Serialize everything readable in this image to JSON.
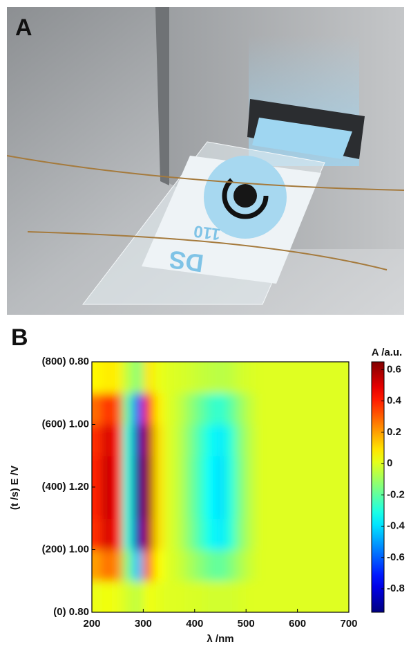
{
  "panel_labels": [
    "A",
    "B"
  ],
  "photo_text": [
    "DS",
    "110"
  ],
  "chart_data": {
    "type": "heatmap",
    "xlabel": "λ /nm",
    "ylabel": "(t /s) E /V",
    "x": [
      210,
      230,
      250,
      270,
      290,
      310,
      330,
      350,
      370,
      390,
      410,
      430,
      450,
      470,
      490,
      510,
      530,
      550,
      570,
      590,
      610,
      630,
      650,
      670,
      690
    ],
    "y": [
      50,
      150,
      250,
      350,
      450,
      550,
      650,
      750
    ],
    "z": [
      [
        0.02,
        0.03,
        0.02,
        -0.02,
        -0.05,
        0.03,
        0.01,
        0,
        0,
        -0.01,
        -0.01,
        -0.02,
        -0.02,
        -0.02,
        -0.01,
        0,
        0,
        0,
        0,
        0,
        0,
        0,
        0,
        0,
        0
      ],
      [
        0.2,
        0.28,
        0.23,
        -0.15,
        -0.45,
        0.3,
        0.05,
        0,
        -0.03,
        -0.08,
        -0.13,
        -0.18,
        -0.2,
        -0.15,
        -0.08,
        -0.03,
        0,
        0,
        0,
        0,
        0,
        0,
        0,
        0,
        0
      ],
      [
        0.38,
        0.52,
        0.43,
        -0.29,
        -0.86,
        0.57,
        0.1,
        0,
        -0.05,
        -0.14,
        -0.24,
        -0.33,
        -0.38,
        -0.29,
        -0.14,
        -0.05,
        0,
        0,
        0,
        0,
        0,
        0,
        0,
        0,
        0
      ],
      [
        0.4,
        0.55,
        0.45,
        -0.3,
        -0.9,
        0.6,
        0.1,
        0,
        -0.05,
        -0.15,
        -0.25,
        -0.35,
        -0.4,
        -0.3,
        -0.15,
        -0.05,
        0,
        0,
        0,
        0,
        0,
        0,
        0,
        0,
        0
      ],
      [
        0.4,
        0.55,
        0.45,
        -0.3,
        -0.9,
        0.6,
        0.1,
        0,
        -0.05,
        -0.15,
        -0.25,
        -0.35,
        -0.4,
        -0.3,
        -0.15,
        -0.05,
        0,
        0,
        0,
        0,
        0,
        0,
        0,
        0,
        0
      ],
      [
        0.38,
        0.52,
        0.43,
        -0.29,
        -0.86,
        0.57,
        0.1,
        0,
        -0.05,
        -0.14,
        -0.24,
        -0.33,
        -0.38,
        -0.29,
        -0.14,
        -0.05,
        0,
        0,
        0,
        0,
        0,
        0,
        0,
        0,
        0
      ],
      [
        0.28,
        0.39,
        0.32,
        -0.21,
        -0.63,
        0.42,
        0.07,
        0,
        -0.04,
        -0.11,
        -0.18,
        -0.25,
        -0.28,
        -0.21,
        -0.11,
        -0.04,
        0,
        0,
        0,
        0,
        0,
        0,
        0,
        0,
        0
      ],
      [
        0.06,
        0.08,
        0.07,
        -0.05,
        -0.14,
        0.09,
        0.02,
        0,
        -0.01,
        -0.02,
        -0.04,
        -0.05,
        -0.06,
        -0.05,
        -0.02,
        -0.01,
        0,
        0,
        0,
        0,
        0,
        0,
        0,
        0,
        0
      ]
    ],
    "xlim": [
      200,
      700
    ],
    "xticks": [
      200,
      300,
      400,
      500,
      600,
      700
    ],
    "ylim": [
      0,
      800
    ],
    "yticks": [
      {
        "value": 0,
        "label": "(0) 0.80"
      },
      {
        "value": 200,
        "label": "(200) 1.00"
      },
      {
        "value": 400,
        "label": "(400) 1.20"
      },
      {
        "value": 600,
        "label": "(600) 1.00"
      },
      {
        "value": 800,
        "label": "(800) 0.80"
      }
    ],
    "colormap": "jet",
    "clim": [
      -0.95,
      0.65
    ],
    "colorbar_label": "A /a.u.",
    "cticks": [
      0.6,
      0.4,
      0.2,
      0,
      -0.2,
      -0.4,
      -0.6,
      -0.8
    ]
  }
}
